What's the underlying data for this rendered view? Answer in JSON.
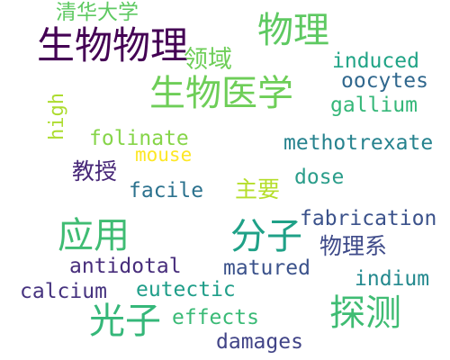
{
  "words": [
    {
      "text": "清华大学",
      "color": "#5ec962"
    },
    {
      "text": "生物物理",
      "color": "#440154"
    },
    {
      "text": "物理",
      "color": "#5ec962"
    },
    {
      "text": "领域",
      "color": "#6ece58"
    },
    {
      "text": "induced",
      "color": "#20a486"
    },
    {
      "text": "oocytes",
      "color": "#31688e"
    },
    {
      "text": "生物医学",
      "color": "#6ece58"
    },
    {
      "text": "gallium",
      "color": "#35b779"
    },
    {
      "text": "high",
      "color": "#addc30"
    },
    {
      "text": "folinate",
      "color": "#86d549"
    },
    {
      "text": "methotrexate",
      "color": "#26828e"
    },
    {
      "text": "mouse",
      "color": "#fde725"
    },
    {
      "text": "教授",
      "color": "#482878"
    },
    {
      "text": "dose",
      "color": "#2a9d8a"
    },
    {
      "text": "facile",
      "color": "#2c728e"
    },
    {
      "text": "主要",
      "color": "#b5de2b"
    },
    {
      "text": "fabrication",
      "color": "#3b528b"
    },
    {
      "text": "应用",
      "color": "#3fbc73"
    },
    {
      "text": "分子",
      "color": "#1fa187"
    },
    {
      "text": "物理系",
      "color": "#3e4a89"
    },
    {
      "text": "antidotal",
      "color": "#472d7b"
    },
    {
      "text": "matured",
      "color": "#3b528b"
    },
    {
      "text": "indium",
      "color": "#23898e"
    },
    {
      "text": "calcium",
      "color": "#46337f"
    },
    {
      "text": "eutectic",
      "color": "#1f9e89"
    },
    {
      "text": "光子",
      "color": "#35b779"
    },
    {
      "text": "探测",
      "color": "#3fbc73"
    },
    {
      "text": "effects",
      "color": "#3aba76"
    },
    {
      "text": "damages",
      "color": "#414487"
    }
  ]
}
